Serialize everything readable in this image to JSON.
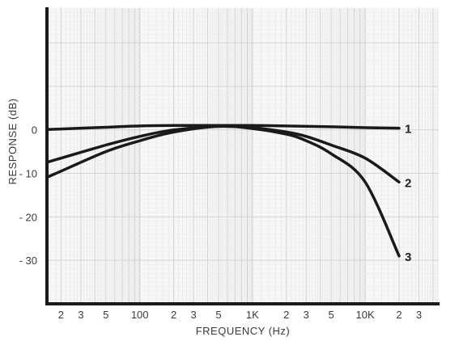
{
  "chart_data": {
    "type": "line",
    "title": "",
    "xlabel": "FREQUENCY (Hz)",
    "ylabel": "RESPONSE (dB)",
    "x_scale": "log",
    "xlim": [
      15,
      45000
    ],
    "ylim": [
      -40,
      28
    ],
    "grid": true,
    "x_ticks": [
      {
        "value": 20,
        "label": "2"
      },
      {
        "value": 30,
        "label": "3"
      },
      {
        "value": 50,
        "label": "5"
      },
      {
        "value": 100,
        "label": "100"
      },
      {
        "value": 200,
        "label": "2"
      },
      {
        "value": 300,
        "label": "3"
      },
      {
        "value": 500,
        "label": "5"
      },
      {
        "value": 1000,
        "label": "1K"
      },
      {
        "value": 2000,
        "label": "2"
      },
      {
        "value": 3000,
        "label": "3"
      },
      {
        "value": 5000,
        "label": "5"
      },
      {
        "value": 10000,
        "label": "10K"
      },
      {
        "value": 20000,
        "label": "2"
      },
      {
        "value": 30000,
        "label": "3"
      }
    ],
    "y_ticks": [
      {
        "value": 0,
        "label": "0"
      },
      {
        "value": -10,
        "label": "- 10"
      },
      {
        "value": -20,
        "label": "- 20"
      },
      {
        "value": -30,
        "label": "- 30"
      }
    ],
    "series": [
      {
        "name": "1",
        "x": [
          20,
          50,
          100,
          200,
          500,
          1000,
          2000,
          5000,
          10000,
          20000
        ],
        "y": [
          0.2,
          0.6,
          0.9,
          1.0,
          1.0,
          1.0,
          0.9,
          0.7,
          0.5,
          0.4
        ]
      },
      {
        "name": "2",
        "x": [
          20,
          50,
          100,
          200,
          500,
          1000,
          2000,
          3000,
          5000,
          10000,
          20000
        ],
        "y": [
          -6.5,
          -3.5,
          -1.5,
          0.0,
          0.8,
          0.5,
          -0.5,
          -1.5,
          -3.5,
          -6.5,
          -12.0
        ]
      },
      {
        "name": "3",
        "x": [
          20,
          50,
          100,
          200,
          500,
          1000,
          2000,
          3000,
          5000,
          10000,
          20000
        ],
        "y": [
          -9.5,
          -5.0,
          -2.5,
          -0.5,
          0.8,
          0.3,
          -1.0,
          -2.5,
          -5.5,
          -12.0,
          -29.0
        ]
      }
    ]
  }
}
